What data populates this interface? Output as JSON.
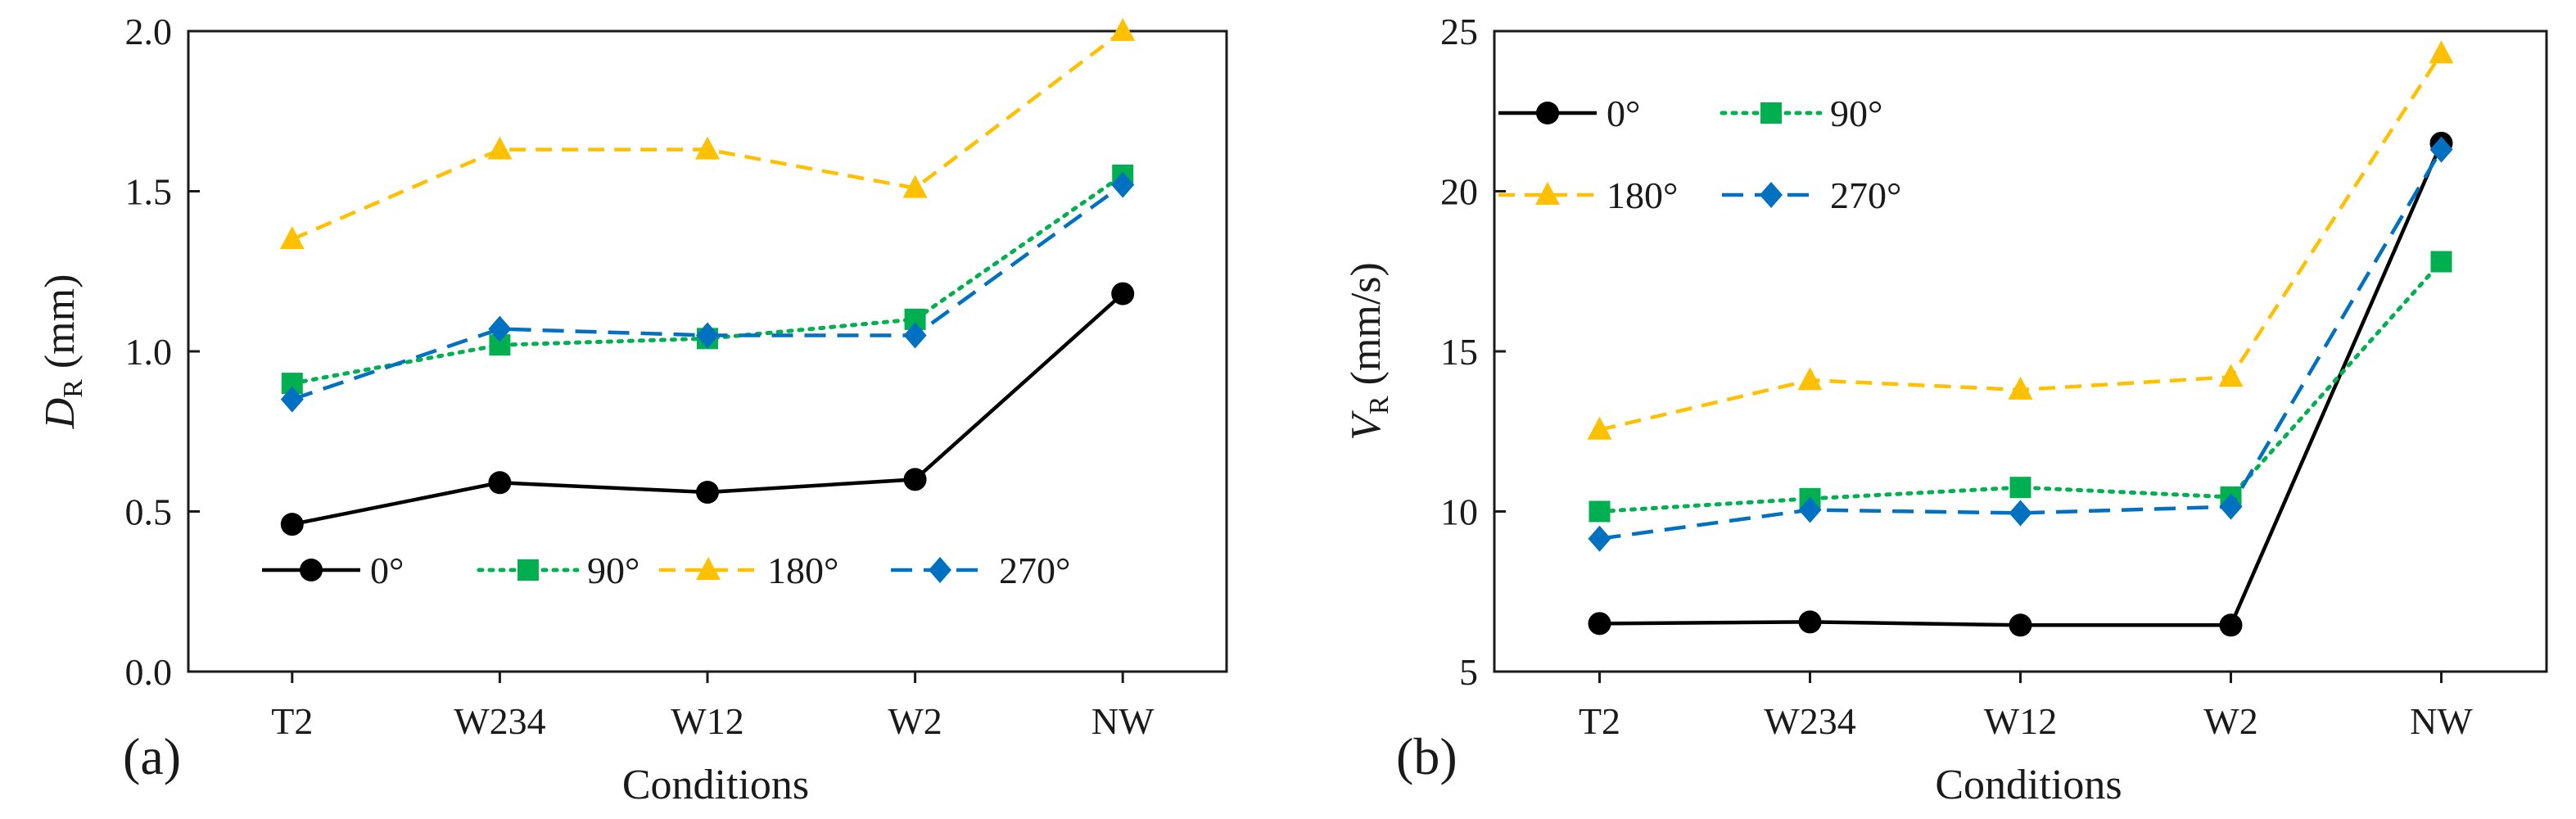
{
  "chart_data": [
    {
      "type": "line",
      "panel_label": "(a)",
      "categories": [
        "T2",
        "W234",
        "W12",
        "W2",
        "NW"
      ],
      "xlabel": "Conditions",
      "ylabel_main": "D",
      "ylabel_sub": "R",
      "ylabel_unit": " (mm)",
      "ylim": [
        0,
        2
      ],
      "yticks": [
        0.0,
        0.5,
        1.0,
        1.5,
        2.0
      ],
      "ytick_labels": [
        "0.0",
        "0.5",
        "1.0",
        "1.5",
        "2.0"
      ],
      "legend_position": "bottom-center",
      "legend_columns": 4,
      "series": [
        {
          "name": "0°",
          "color": "#000000",
          "dash": "solid",
          "marker": "circle",
          "values": [
            0.46,
            0.59,
            0.56,
            0.6,
            1.18
          ]
        },
        {
          "name": "90°",
          "color": "#00b050",
          "dash": "dotted",
          "marker": "square",
          "values": [
            0.9,
            1.02,
            1.04,
            1.1,
            1.55
          ]
        },
        {
          "name": "180°",
          "color": "#ffc000",
          "dash": "dashed",
          "marker": "triangle",
          "values": [
            1.35,
            1.63,
            1.63,
            1.51,
            2.0
          ]
        },
        {
          "name": "270°",
          "color": "#0070c0",
          "dash": "longdash",
          "marker": "diamond",
          "values": [
            0.85,
            1.07,
            1.05,
            1.05,
            1.52
          ]
        }
      ]
    },
    {
      "type": "line",
      "panel_label": "(b)",
      "categories": [
        "T2",
        "W234",
        "W12",
        "W2",
        "NW"
      ],
      "xlabel": "Conditions",
      "ylabel_main": "V",
      "ylabel_sub": "R",
      "ylabel_unit": " (mm/s)",
      "ylim": [
        5,
        25
      ],
      "yticks": [
        5,
        10,
        15,
        20,
        25
      ],
      "ytick_labels": [
        "5",
        "10",
        "15",
        "20",
        "25"
      ],
      "legend_position": "top-left",
      "legend_columns": 2,
      "series": [
        {
          "name": "0°",
          "color": "#000000",
          "dash": "solid",
          "marker": "circle",
          "values": [
            6.5,
            6.55,
            6.45,
            6.45,
            21.5
          ]
        },
        {
          "name": "90°",
          "color": "#00b050",
          "dash": "dotted",
          "marker": "square",
          "values": [
            10.0,
            10.4,
            10.75,
            10.45,
            17.8
          ]
        },
        {
          "name": "180°",
          "color": "#ffc000",
          "dash": "dashed",
          "marker": "triangle",
          "values": [
            12.55,
            14.1,
            13.8,
            14.2,
            24.3
          ]
        },
        {
          "name": "270°",
          "color": "#0070c0",
          "dash": "longdash",
          "marker": "diamond",
          "values": [
            9.15,
            10.05,
            9.95,
            10.15,
            21.3
          ]
        }
      ]
    }
  ]
}
